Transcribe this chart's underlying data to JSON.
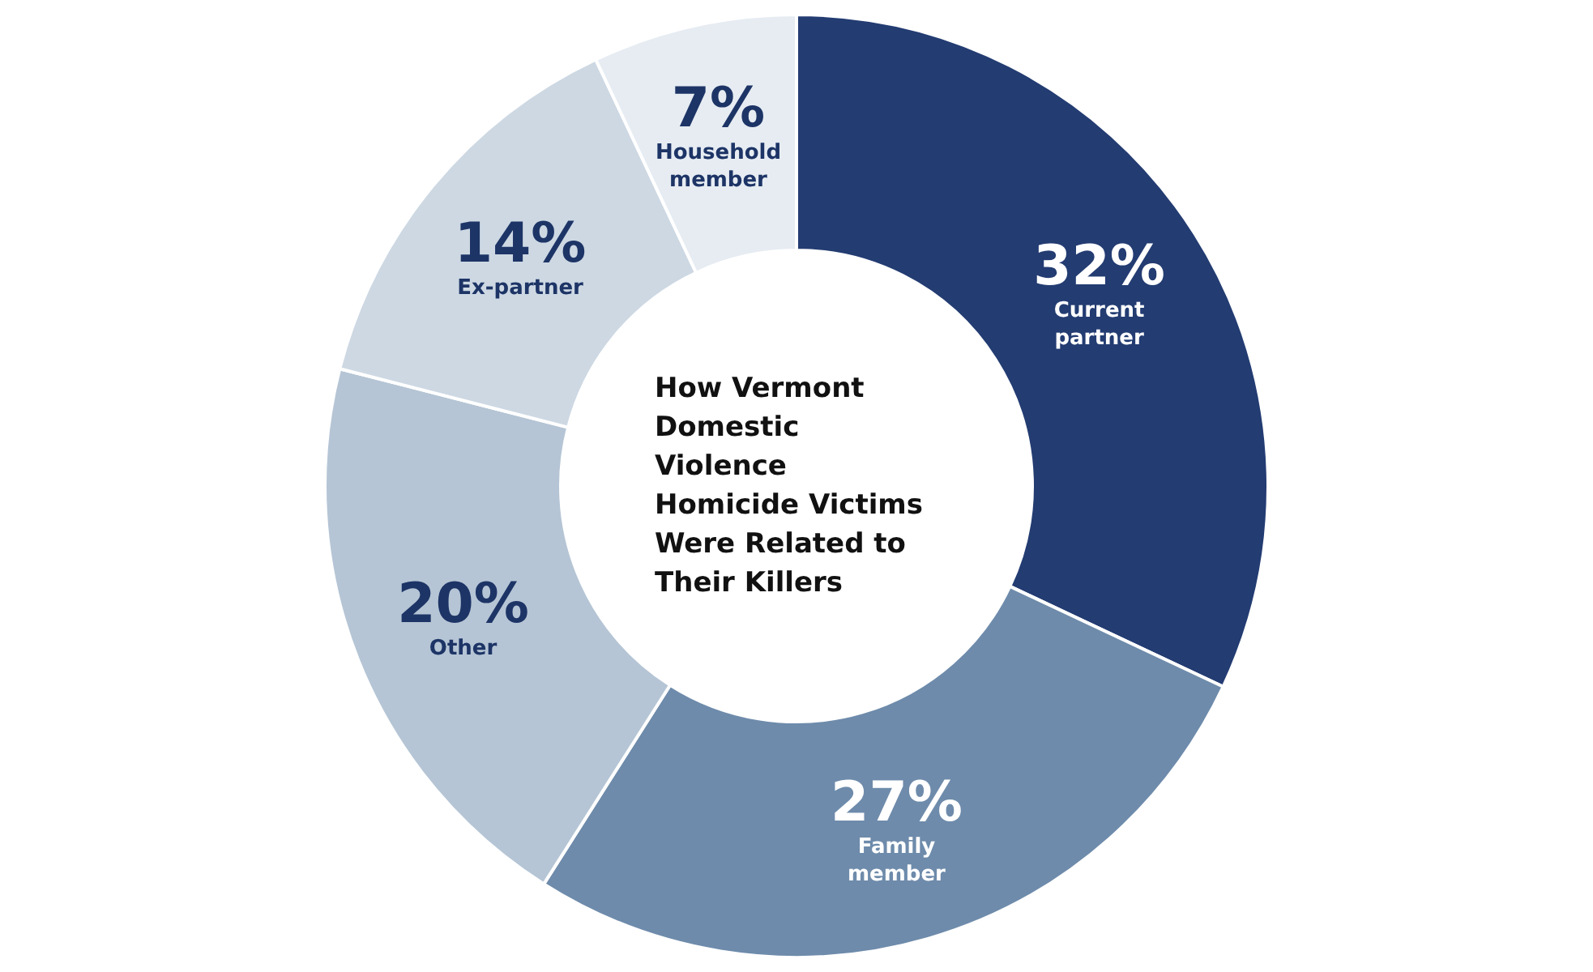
{
  "chart_data": {
    "type": "donut",
    "title": "How Vermont Domestic Violence Homicide Victims Were Related to Their Killers",
    "categories": [
      "Current partner",
      "Family member",
      "Other",
      "Ex-partner",
      "Household member"
    ],
    "values": [
      32,
      27,
      20,
      14,
      7
    ],
    "value_labels": [
      "32%",
      "27%",
      "20%",
      "14%",
      "7%"
    ],
    "colors": [
      "#233c72",
      "#6e8bab",
      "#b5c5d5",
      "#cdd8e3",
      "#e6ecf2"
    ],
    "legend": false
  }
}
